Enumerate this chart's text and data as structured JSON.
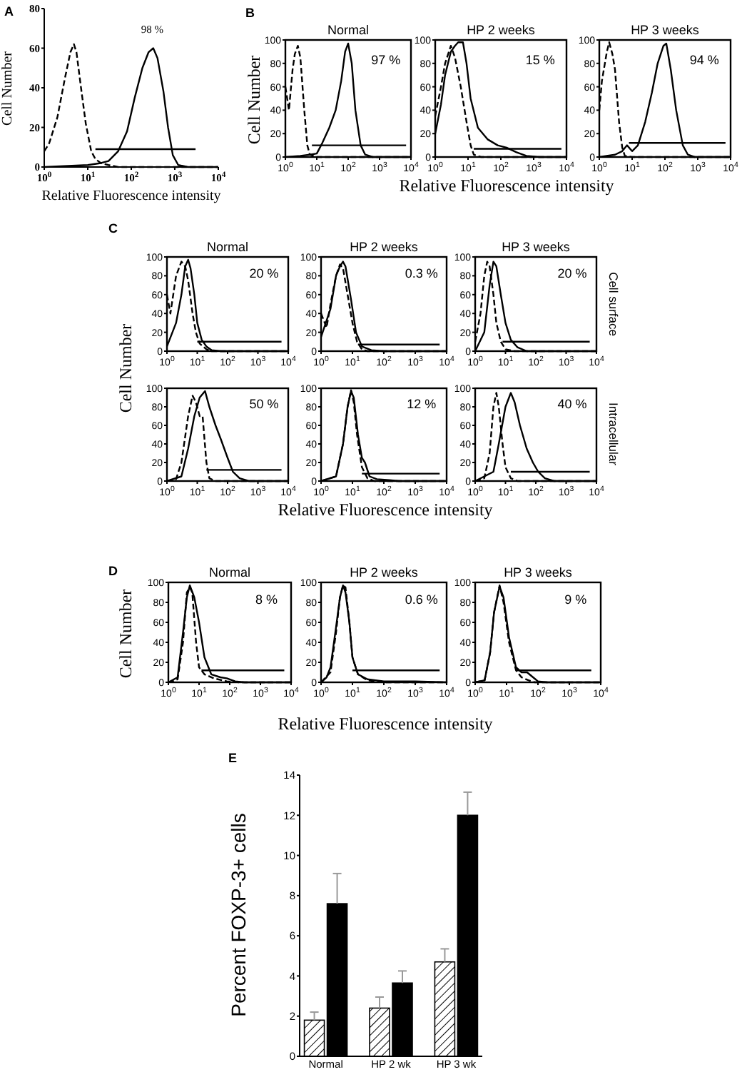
{
  "chart_data": [
    {
      "type": "line",
      "log": "x",
      "xlabel": "Relative Fluorescence intensity",
      "ylabel": "Cell Number",
      "xlim": [
        1,
        10000
      ],
      "xticks": [
        {
          "value": 1,
          "label": "10$^{0}$"
        },
        {
          "value": 10,
          "label": "10$^{1}$"
        },
        {
          "value": 100,
          "label": "10$^{2}$"
        },
        {
          "value": 1000,
          "label": "10$^{3}$"
        },
        {
          "value": 10000,
          "label": "10$^{4}$"
        }
      ],
      "ylim": [
        0,
        80
      ],
      "yticks": [
        0,
        20,
        40,
        60,
        80
      ],
      "annotations": [
        "A",
        "98 %"
      ],
      "series": [
        {
          "color": "#000000",
          "line_style": "dashed",
          "x": [
            1,
            1.3,
            2,
            3,
            4,
            4.8,
            5.5,
            7,
            9,
            12,
            15,
            20,
            30,
            50,
            10000
          ],
          "values": [
            8,
            12,
            25,
            45,
            58,
            62,
            58,
            40,
            22,
            8,
            4,
            2,
            1,
            0,
            0
          ]
        },
        {
          "color": "#000000",
          "line_style": "solid",
          "x": [
            1,
            10,
            20,
            30,
            50,
            80,
            120,
            180,
            250,
            320,
            400,
            550,
            700,
            900,
            1200,
            2000,
            10000
          ],
          "values": [
            0,
            1,
            2,
            3,
            8,
            18,
            35,
            50,
            58,
            60,
            55,
            38,
            20,
            6,
            1,
            0,
            0
          ]
        },
        {
          "color": "#000000",
          "line_style": "solid",
          "x": [
            15,
            3000
          ],
          "values": [
            9,
            9
          ]
        }
      ]
    },
    {
      "type": "line",
      "log": "x",
      "title": "Normal",
      "ylabel": "Cell Number",
      "xlim": [
        1,
        10000
      ],
      "xticks": [
        {
          "value": 1,
          "label": "10$^{0}$"
        },
        {
          "value": 10,
          "label": "10$^{1}$"
        },
        {
          "value": 100,
          "label": "10$^{2}$"
        },
        {
          "value": 1000,
          "label": "10$^{3}$"
        },
        {
          "value": 10000,
          "label": "10$^{4}$"
        }
      ],
      "ylim": [
        0,
        100
      ],
      "yticks": [
        0,
        20,
        40,
        60,
        80,
        100
      ],
      "annotations": [
        "B",
        "97 %"
      ],
      "series": [
        {
          "color": "#000000",
          "line_style": "dashed",
          "x": [
            1,
            1.3,
            1.7,
            2,
            2.5,
            3,
            4,
            5,
            6,
            10,
            10000
          ],
          "values": [
            60,
            40,
            75,
            88,
            95,
            85,
            40,
            10,
            2,
            0,
            0
          ]
        },
        {
          "color": "#000000",
          "line_style": "solid",
          "x": [
            1,
            3,
            6,
            10,
            15,
            25,
            40,
            60,
            80,
            100,
            130,
            170,
            250,
            350,
            600,
            10000
          ],
          "values": [
            0,
            1,
            2,
            3,
            12,
            25,
            40,
            65,
            90,
            97,
            80,
            40,
            10,
            2,
            0,
            0
          ]
        },
        {
          "color": "#000000",
          "line_style": "solid",
          "x": [
            7,
            7000
          ],
          "values": [
            10,
            10
          ]
        }
      ]
    },
    {
      "type": "line",
      "log": "x",
      "title": "HP 2 weeks",
      "xlabel": "Relative Fluorescence intensity",
      "xlim": [
        1,
        10000
      ],
      "xticks": [
        {
          "value": 1,
          "label": "10$^{0}$"
        },
        {
          "value": 10,
          "label": "10$^{1}$"
        },
        {
          "value": 100,
          "label": "10$^{2}$"
        },
        {
          "value": 1000,
          "label": "10$^{3}$"
        },
        {
          "value": 10000,
          "label": "10$^{4}$"
        }
      ],
      "ylim": [
        0,
        100
      ],
      "yticks": [
        0,
        20,
        40,
        60,
        80,
        100
      ],
      "annotations": [
        "15 %"
      ],
      "series": [
        {
          "color": "#000000",
          "line_style": "dashed",
          "x": [
            1,
            1.5,
            2,
            3,
            4,
            6,
            9,
            12,
            15,
            25,
            10000
          ],
          "values": [
            35,
            60,
            80,
            95,
            85,
            60,
            30,
            10,
            2,
            0,
            0
          ]
        },
        {
          "color": "#000000",
          "line_style": "solid",
          "x": [
            1,
            1.5,
            2,
            3,
            4,
            5,
            7,
            9,
            12,
            20,
            40,
            80,
            150,
            300,
            600,
            1500,
            10000
          ],
          "values": [
            20,
            45,
            70,
            90,
            95,
            98,
            98,
            80,
            50,
            25,
            15,
            10,
            8,
            4,
            1,
            0,
            0
          ]
        },
        {
          "color": "#000000",
          "line_style": "solid",
          "x": [
            15,
            7000
          ],
          "values": [
            7,
            7
          ]
        }
      ]
    },
    {
      "type": "line",
      "log": "x",
      "title": "HP 3 weeks",
      "xlim": [
        1,
        10000
      ],
      "xticks": [
        {
          "value": 1,
          "label": "10$^{0}$"
        },
        {
          "value": 10,
          "label": "10$^{1}$"
        },
        {
          "value": 100,
          "label": "10$^{2}$"
        },
        {
          "value": 1000,
          "label": "10$^{3}$"
        },
        {
          "value": 10000,
          "label": "10$^{4}$"
        }
      ],
      "ylim": [
        0,
        100
      ],
      "yticks": [
        0,
        20,
        40,
        60,
        80,
        100
      ],
      "annotations": [
        "94 %"
      ],
      "series": [
        {
          "color": "#000000",
          "line_style": "dashed",
          "x": [
            1,
            1.2,
            1.7,
            2,
            2.5,
            3,
            4,
            5,
            6,
            10,
            10000
          ],
          "values": [
            40,
            65,
            90,
            98,
            88,
            75,
            30,
            8,
            1,
            0,
            0
          ]
        },
        {
          "color": "#000000",
          "line_style": "solid",
          "x": [
            1,
            3,
            5,
            7,
            10,
            15,
            25,
            40,
            60,
            90,
            110,
            150,
            220,
            350,
            500,
            800,
            10000
          ],
          "values": [
            0,
            2,
            5,
            10,
            5,
            10,
            30,
            55,
            80,
            95,
            97,
            75,
            40,
            10,
            2,
            0,
            0
          ]
        },
        {
          "color": "#000000",
          "line_style": "solid",
          "x": [
            8,
            7000
          ],
          "values": [
            12,
            12
          ]
        }
      ]
    },
    {
      "type": "line",
      "log": "x",
      "title": "Normal",
      "ylabel": "Cell Number",
      "xlim": [
        1,
        10000
      ],
      "xticks": [
        {
          "value": 1,
          "label": "10$^{0}$"
        },
        {
          "value": 10,
          "label": "10$^{1}$"
        },
        {
          "value": 100,
          "label": "10$^{2}$"
        },
        {
          "value": 1000,
          "label": "10$^{3}$"
        },
        {
          "value": 10000,
          "label": "10$^{4}$"
        }
      ],
      "ylim": [
        0,
        100
      ],
      "yticks": [
        0,
        20,
        40,
        60,
        80,
        100
      ],
      "annotations": [
        "C",
        "20 %"
      ],
      "series": [
        {
          "color": "#000000",
          "line_style": "dashed",
          "x": [
            1,
            1.3,
            2,
            3,
            4,
            5,
            7,
            9,
            12,
            20,
            30,
            10000
          ],
          "values": [
            60,
            40,
            80,
            95,
            90,
            75,
            40,
            20,
            8,
            2,
            0,
            0
          ]
        },
        {
          "color": "#000000",
          "line_style": "solid",
          "x": [
            1,
            2,
            3,
            4,
            5,
            6,
            8,
            10,
            14,
            20,
            30,
            60,
            10000
          ],
          "values": [
            5,
            30,
            60,
            90,
            97,
            88,
            60,
            30,
            12,
            5,
            1,
            0,
            0
          ]
        },
        {
          "color": "#000000",
          "line_style": "solid",
          "x": [
            10,
            6000
          ],
          "values": [
            10,
            10
          ]
        }
      ]
    },
    {
      "type": "line",
      "log": "x",
      "title": "HP 2 weeks",
      "xlim": [
        1,
        10000
      ],
      "xticks": [
        {
          "value": 1,
          "label": "10$^{0}$"
        },
        {
          "value": 10,
          "label": "10$^{1}$"
        },
        {
          "value": 100,
          "label": "10$^{2}$"
        },
        {
          "value": 1000,
          "label": "10$^{3}$"
        },
        {
          "value": 10000,
          "label": "10$^{4}$"
        }
      ],
      "ylim": [
        0,
        100
      ],
      "yticks": [
        0,
        20,
        40,
        60,
        80,
        100
      ],
      "annotations": [
        "0.3 %"
      ],
      "series": [
        {
          "color": "#000000",
          "line_style": "dashed",
          "x": [
            1,
            1.5,
            2,
            3,
            4,
            5,
            7,
            10,
            14,
            20,
            30,
            10000
          ],
          "values": [
            40,
            25,
            50,
            80,
            92,
            88,
            60,
            30,
            10,
            2,
            0,
            0
          ]
        },
        {
          "color": "#000000",
          "line_style": "solid",
          "x": [
            1,
            2,
            3,
            4,
            5,
            6,
            9,
            13,
            20,
            40,
            100,
            10000
          ],
          "values": [
            15,
            45,
            80,
            90,
            95,
            90,
            55,
            20,
            5,
            1,
            0,
            0
          ]
        },
        {
          "color": "#000000",
          "line_style": "solid",
          "x": [
            15,
            6000
          ],
          "values": [
            7,
            7
          ]
        }
      ]
    },
    {
      "type": "line",
      "log": "x",
      "title": "HP 3 weeks",
      "y2label": "Cell surface",
      "xlim": [
        1,
        10000
      ],
      "xticks": [
        {
          "value": 1,
          "label": "10$^{0}$"
        },
        {
          "value": 10,
          "label": "10$^{1}$"
        },
        {
          "value": 100,
          "label": "10$^{2}$"
        },
        {
          "value": 1000,
          "label": "10$^{3}$"
        },
        {
          "value": 10000,
          "label": "10$^{4}$"
        }
      ],
      "ylim": [
        0,
        100
      ],
      "yticks": [
        0,
        20,
        40,
        60,
        80,
        100
      ],
      "annotations": [
        "20 %"
      ],
      "series": [
        {
          "color": "#000000",
          "line_style": "dashed",
          "x": [
            1,
            1.5,
            2,
            2.5,
            3,
            4,
            5,
            7,
            10,
            20,
            10000
          ],
          "values": [
            10,
            40,
            80,
            95,
            90,
            60,
            30,
            10,
            2,
            0,
            0
          ]
        },
        {
          "color": "#000000",
          "line_style": "solid",
          "x": [
            1,
            2,
            3,
            4,
            5,
            7,
            10,
            15,
            25,
            50,
            10000
          ],
          "values": [
            0,
            20,
            70,
            95,
            90,
            60,
            30,
            12,
            4,
            0,
            0
          ]
        },
        {
          "color": "#000000",
          "line_style": "solid",
          "x": [
            8,
            6000
          ],
          "values": [
            10,
            10
          ]
        }
      ]
    },
    {
      "type": "line",
      "log": "x",
      "xlim": [
        1,
        10000
      ],
      "xticks": [
        {
          "value": 1,
          "label": "10$^{0}$"
        },
        {
          "value": 10,
          "label": "10$^{1}$"
        },
        {
          "value": 100,
          "label": "10$^{2}$"
        },
        {
          "value": 1000,
          "label": "10$^{3}$"
        },
        {
          "value": 10000,
          "label": "10$^{4}$"
        }
      ],
      "ylim": [
        0,
        100
      ],
      "yticks": [
        0,
        20,
        40,
        60,
        80,
        100
      ],
      "annotations": [
        "50 %"
      ],
      "series": [
        {
          "color": "#000000",
          "line_style": "dashed",
          "x": [
            1,
            2,
            3,
            5,
            7,
            9,
            12,
            15,
            20,
            25,
            40,
            10000
          ],
          "values": [
            0,
            2,
            20,
            70,
            92,
            85,
            70,
            70,
            20,
            3,
            0,
            0
          ]
        },
        {
          "color": "#000000",
          "line_style": "solid",
          "x": [
            1,
            3,
            5,
            8,
            12,
            18,
            25,
            40,
            60,
            100,
            150,
            250,
            500,
            10000
          ],
          "values": [
            0,
            5,
            35,
            70,
            90,
            97,
            80,
            60,
            45,
            25,
            10,
            3,
            0,
            0
          ]
        },
        {
          "color": "#000000",
          "line_style": "solid",
          "x": [
            20,
            6000
          ],
          "values": [
            12,
            12
          ]
        }
      ]
    },
    {
      "type": "line",
      "log": "x",
      "xlabel": "Relative Fluorescence intensity",
      "xlim": [
        1,
        10000
      ],
      "xticks": [
        {
          "value": 1,
          "label": "10$^{0}$"
        },
        {
          "value": 10,
          "label": "10$^{1}$"
        },
        {
          "value": 100,
          "label": "10$^{2}$"
        },
        {
          "value": 1000,
          "label": "10$^{3}$"
        },
        {
          "value": 10000,
          "label": "10$^{4}$"
        }
      ],
      "ylim": [
        0,
        100
      ],
      "yticks": [
        0,
        20,
        40,
        60,
        80,
        100
      ],
      "annotations": [
        "12 %"
      ],
      "series": [
        {
          "color": "#000000",
          "line_style": "dashed",
          "x": [
            1,
            3,
            5,
            7,
            9,
            11,
            14,
            20,
            30,
            50,
            10000
          ],
          "values": [
            0,
            5,
            40,
            80,
            98,
            85,
            50,
            15,
            3,
            0,
            0
          ]
        },
        {
          "color": "#000000",
          "line_style": "solid",
          "x": [
            1,
            3,
            5,
            7,
            9,
            11,
            15,
            20,
            25,
            35,
            60,
            150,
            300,
            10000
          ],
          "values": [
            0,
            5,
            40,
            80,
            97,
            90,
            50,
            25,
            20,
            5,
            2,
            1,
            0,
            0
          ]
        },
        {
          "color": "#000000",
          "line_style": "solid",
          "x": [
            20,
            6000
          ],
          "values": [
            8,
            8
          ]
        }
      ]
    },
    {
      "type": "line",
      "log": "x",
      "y2label": "Intracellular",
      "xlim": [
        1,
        10000
      ],
      "xticks": [
        {
          "value": 1,
          "label": "10$^{0}$"
        },
        {
          "value": 10,
          "label": "10$^{1}$"
        },
        {
          "value": 100,
          "label": "10$^{2}$"
        },
        {
          "value": 1000,
          "label": "10$^{3}$"
        },
        {
          "value": 10000,
          "label": "10$^{4}$"
        }
      ],
      "ylim": [
        0,
        100
      ],
      "yticks": [
        0,
        20,
        40,
        60,
        80,
        100
      ],
      "annotations": [
        "40 %"
      ],
      "series": [
        {
          "color": "#000000",
          "line_style": "dashed",
          "x": [
            1,
            2,
            3,
            4,
            5,
            6,
            8,
            10,
            15,
            25,
            10000
          ],
          "values": [
            0,
            3,
            30,
            80,
            95,
            80,
            40,
            15,
            3,
            0,
            0
          ]
        },
        {
          "color": "#000000",
          "line_style": "solid",
          "x": [
            1,
            4,
            6,
            10,
            15,
            20,
            30,
            50,
            80,
            120,
            200,
            400,
            10000
          ],
          "values": [
            0,
            10,
            40,
            80,
            95,
            85,
            60,
            35,
            20,
            10,
            3,
            0,
            0
          ]
        },
        {
          "color": "#000000",
          "line_style": "solid",
          "x": [
            15,
            6000
          ],
          "values": [
            10,
            10
          ]
        }
      ]
    },
    {
      "type": "line",
      "log": "x",
      "title": "Normal",
      "ylabel": "Cell Number",
      "xlim": [
        1,
        10000
      ],
      "xticks": [
        {
          "value": 1,
          "label": "10$^{0}$"
        },
        {
          "value": 10,
          "label": "10$^{1}$"
        },
        {
          "value": 100,
          "label": "10$^{2}$"
        },
        {
          "value": 1000,
          "label": "10$^{3}$"
        },
        {
          "value": 10000,
          "label": "10$^{4}$"
        }
      ],
      "ylim": [
        0,
        100
      ],
      "yticks": [
        0,
        20,
        40,
        60,
        80,
        100
      ],
      "annotations": [
        "D",
        "8 %"
      ],
      "series": [
        {
          "color": "#000000",
          "line_style": "dashed",
          "x": [
            1,
            2,
            3,
            4,
            5,
            6,
            8,
            10,
            15,
            30,
            80,
            200,
            10000
          ],
          "values": [
            0,
            3,
            40,
            90,
            95,
            90,
            40,
            15,
            8,
            4,
            1,
            0,
            0
          ]
        },
        {
          "color": "#000000",
          "line_style": "solid",
          "x": [
            1,
            2,
            3,
            4,
            5,
            7,
            10,
            15,
            25,
            50,
            80,
            150,
            300,
            10000
          ],
          "values": [
            0,
            5,
            50,
            85,
            97,
            85,
            60,
            25,
            8,
            5,
            4,
            1,
            0,
            0
          ]
        },
        {
          "color": "#000000",
          "line_style": "solid",
          "x": [
            12,
            6000
          ],
          "values": [
            12,
            12
          ]
        }
      ]
    },
    {
      "type": "line",
      "log": "x",
      "title": "HP 2 weeks",
      "xlabel": "Relative Fluorescence intensity",
      "xlim": [
        1,
        10000
      ],
      "xticks": [
        {
          "value": 1,
          "label": "10$^{0}$"
        },
        {
          "value": 10,
          "label": "10$^{1}$"
        },
        {
          "value": 100,
          "label": "10$^{2}$"
        },
        {
          "value": 1000,
          "label": "10$^{3}$"
        },
        {
          "value": 10000,
          "label": "10$^{4}$"
        }
      ],
      "ylim": [
        0,
        100
      ],
      "yticks": [
        0,
        20,
        40,
        60,
        80,
        100
      ],
      "annotations": [
        "0.6 %"
      ],
      "series": [
        {
          "color": "#000000",
          "line_style": "dashed",
          "x": [
            1,
            2,
            3,
            4,
            5,
            6,
            8,
            10,
            15,
            30,
            100,
            10000
          ],
          "values": [
            0,
            10,
            50,
            85,
            97,
            95,
            60,
            25,
            8,
            2,
            0,
            0
          ]
        },
        {
          "color": "#000000",
          "line_style": "solid",
          "x": [
            1,
            1.5,
            2,
            3,
            4,
            5,
            6,
            8,
            10,
            15,
            30,
            100,
            1000,
            10000
          ],
          "values": [
            0,
            5,
            15,
            55,
            85,
            97,
            90,
            60,
            25,
            8,
            3,
            1,
            1,
            0
          ]
        },
        {
          "color": "#000000",
          "line_style": "solid",
          "x": [
            10,
            6000
          ],
          "values": [
            12,
            12
          ]
        }
      ]
    },
    {
      "type": "line",
      "log": "x",
      "title": "HP 3 weeks",
      "xlim": [
        1,
        10000
      ],
      "xticks": [
        {
          "value": 1,
          "label": "10$^{0}$"
        },
        {
          "value": 10,
          "label": "10$^{1}$"
        },
        {
          "value": 100,
          "label": "10$^{2}$"
        },
        {
          "value": 1000,
          "label": "10$^{3}$"
        },
        {
          "value": 10000,
          "label": "10$^{4}$"
        }
      ],
      "ylim": [
        0,
        100
      ],
      "yticks": [
        0,
        20,
        40,
        60,
        80,
        100
      ],
      "annotations": [
        "9 %"
      ],
      "series": [
        {
          "color": "#000000",
          "line_style": "dashed",
          "x": [
            1,
            2,
            3,
            4,
            6,
            8,
            12,
            20,
            30,
            50,
            80,
            10000
          ],
          "values": [
            0,
            2,
            30,
            70,
            97,
            80,
            40,
            12,
            5,
            2,
            0,
            0
          ]
        },
        {
          "color": "#000000",
          "line_style": "solid",
          "x": [
            1,
            2,
            3,
            4,
            6,
            8,
            12,
            20,
            30,
            45,
            70,
            100,
            200,
            10000
          ],
          "values": [
            0,
            2,
            30,
            70,
            96,
            85,
            45,
            15,
            10,
            10,
            5,
            1,
            0,
            0
          ]
        },
        {
          "color": "#000000",
          "line_style": "solid",
          "x": [
            20,
            5000
          ],
          "values": [
            12,
            12
          ]
        }
      ]
    },
    {
      "type": "bar",
      "ylabel": "Percent FOXP-3+ cells",
      "categories": [
        "Normal",
        "HP 2 wk",
        "HP 3 wk"
      ],
      "ylim": [
        0,
        14
      ],
      "yticks": [
        0,
        2,
        4,
        6,
        8,
        10,
        12,
        14
      ],
      "annotations": [
        "E"
      ],
      "series": [
        {
          "color": "#ffffff",
          "values": [
            1.8,
            2.4,
            4.7
          ],
          "errors": [
            [
              1.8,
              2.2
            ],
            [
              2.4,
              2.95
            ],
            [
              4.7,
              5.35
            ]
          ]
        },
        {
          "color": "#000000",
          "values": [
            7.6,
            3.65,
            12.0
          ],
          "errors": [
            [
              7.6,
              9.1
            ],
            [
              3.65,
              4.25
            ],
            [
              12.0,
              13.15
            ]
          ]
        }
      ]
    }
  ]
}
